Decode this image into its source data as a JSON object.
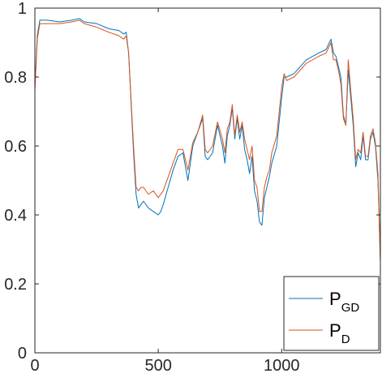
{
  "chart_data": {
    "type": "line",
    "title": "",
    "xlabel": "",
    "ylabel": "",
    "xlim": [
      0,
      1400
    ],
    "ylim": [
      0,
      1
    ],
    "xticks": [
      0,
      500,
      1000
    ],
    "yticks": [
      0,
      0.2,
      0.4,
      0.6,
      0.8,
      1
    ],
    "xtick_labels": [
      "0",
      "500",
      "1000"
    ],
    "ytick_labels": [
      "0",
      "0.2",
      "0.4",
      "0.6",
      "0.8",
      "1"
    ],
    "grid": false,
    "legend_position": "bottom-right",
    "series": [
      {
        "name": "P_GD",
        "legend_main": "P",
        "legend_sub": "GD",
        "color": "#0072BD",
        "x": [
          0,
          10,
          20,
          50,
          100,
          150,
          180,
          200,
          250,
          300,
          340,
          360,
          370,
          380,
          390,
          400,
          410,
          420,
          430,
          440,
          460,
          480,
          500,
          510,
          520,
          540,
          560,
          580,
          600,
          620,
          630,
          640,
          660,
          680,
          690,
          700,
          720,
          740,
          760,
          770,
          780,
          790,
          800,
          810,
          820,
          830,
          840,
          850,
          860,
          870,
          880,
          890,
          900,
          910,
          920,
          930,
          940,
          950,
          960,
          980,
          1000,
          1010,
          1020,
          1050,
          1100,
          1150,
          1180,
          1200,
          1210,
          1220,
          1230,
          1240,
          1250,
          1260,
          1270,
          1280,
          1290,
          1300,
          1310,
          1320,
          1330,
          1340,
          1350,
          1360,
          1370,
          1380,
          1390,
          1400
        ],
        "y": [
          0.77,
          0.92,
          0.965,
          0.965,
          0.96,
          0.965,
          0.97,
          0.96,
          0.955,
          0.94,
          0.935,
          0.925,
          0.93,
          0.87,
          0.72,
          0.58,
          0.46,
          0.42,
          0.43,
          0.44,
          0.42,
          0.41,
          0.4,
          0.41,
          0.43,
          0.48,
          0.53,
          0.57,
          0.58,
          0.5,
          0.55,
          0.6,
          0.64,
          0.68,
          0.57,
          0.56,
          0.58,
          0.66,
          0.6,
          0.55,
          0.63,
          0.66,
          0.71,
          0.62,
          0.68,
          0.62,
          0.66,
          0.59,
          0.56,
          0.52,
          0.57,
          0.47,
          0.44,
          0.38,
          0.37,
          0.45,
          0.48,
          0.51,
          0.55,
          0.6,
          0.74,
          0.8,
          0.8,
          0.81,
          0.85,
          0.87,
          0.88,
          0.91,
          0.87,
          0.86,
          0.83,
          0.8,
          0.69,
          0.66,
          0.82,
          0.74,
          0.66,
          0.54,
          0.58,
          0.56,
          0.63,
          0.56,
          0.56,
          0.62,
          0.64,
          0.6,
          0.5,
          0.27
        ]
      },
      {
        "name": "P_D",
        "legend_main": "P",
        "legend_sub": "D",
        "color": "#D95319",
        "x": [
          0,
          10,
          20,
          50,
          100,
          150,
          180,
          200,
          250,
          300,
          340,
          360,
          370,
          380,
          390,
          400,
          410,
          420,
          430,
          440,
          460,
          480,
          500,
          510,
          520,
          540,
          560,
          580,
          600,
          620,
          630,
          640,
          660,
          680,
          690,
          700,
          720,
          740,
          760,
          770,
          780,
          790,
          800,
          810,
          820,
          830,
          840,
          850,
          860,
          870,
          880,
          890,
          900,
          910,
          920,
          930,
          940,
          950,
          960,
          980,
          1000,
          1010,
          1020,
          1050,
          1100,
          1150,
          1180,
          1200,
          1210,
          1220,
          1230,
          1240,
          1250,
          1260,
          1270,
          1280,
          1290,
          1300,
          1310,
          1320,
          1330,
          1340,
          1350,
          1360,
          1370,
          1380,
          1390,
          1400
        ],
        "y": [
          0.76,
          0.91,
          0.955,
          0.955,
          0.955,
          0.96,
          0.965,
          0.955,
          0.945,
          0.93,
          0.92,
          0.91,
          0.92,
          0.87,
          0.73,
          0.6,
          0.48,
          0.47,
          0.48,
          0.48,
          0.46,
          0.47,
          0.45,
          0.46,
          0.47,
          0.51,
          0.55,
          0.59,
          0.59,
          0.53,
          0.57,
          0.61,
          0.64,
          0.69,
          0.59,
          0.58,
          0.6,
          0.67,
          0.62,
          0.58,
          0.65,
          0.67,
          0.72,
          0.63,
          0.69,
          0.64,
          0.67,
          0.62,
          0.59,
          0.56,
          0.6,
          0.5,
          0.48,
          0.41,
          0.41,
          0.48,
          0.51,
          0.53,
          0.58,
          0.63,
          0.77,
          0.81,
          0.79,
          0.8,
          0.84,
          0.86,
          0.87,
          0.9,
          0.85,
          0.85,
          0.82,
          0.78,
          0.68,
          0.66,
          0.85,
          0.76,
          0.68,
          0.56,
          0.59,
          0.58,
          0.64,
          0.57,
          0.57,
          0.63,
          0.65,
          0.61,
          0.52,
          0.26
        ]
      }
    ]
  }
}
